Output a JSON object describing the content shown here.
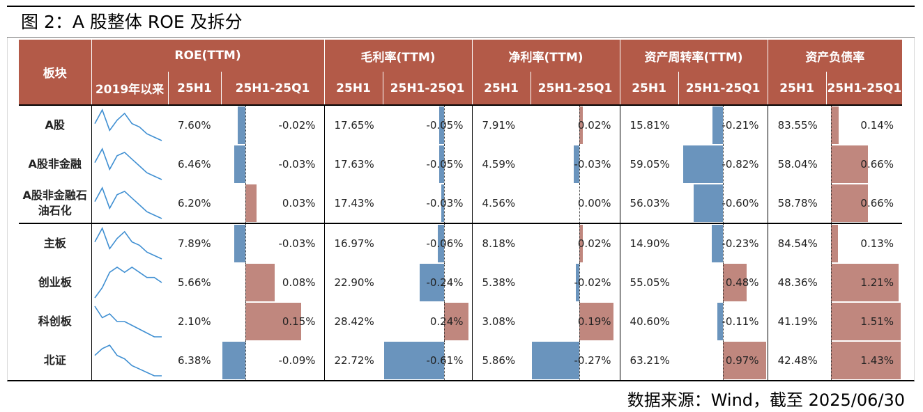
{
  "title": "图 2：A 股整体 ROE 及拆分",
  "source": "数据来源：Wind，截至 2025/06/30",
  "header": {
    "block": "板块",
    "groups": [
      "ROE(TTM)",
      "毛利率(TTM)",
      "净利率(TTM)",
      "资产周转率(TTM)",
      "资产负债率"
    ],
    "sub_trend": "2019年以来",
    "sub_level": "25H1",
    "sub_change": "25H1-25Q1"
  },
  "colors": {
    "header_bg": "#b35a48",
    "neg_bar": "#6a94bd",
    "pos_bar": "#c0877e",
    "sparkline": "#3f8fd2"
  },
  "chart_data": {
    "type": "table",
    "columns": [
      "板块",
      "ROE 25H1",
      "ROE 25H1-25Q1",
      "毛利率 25H1",
      "毛利率 25H1-25Q1",
      "净利率 25H1",
      "净利率 25H1-25Q1",
      "资产周转率 25H1",
      "资产周转率 25H1-25Q1",
      "资产负债率 25H1",
      "资产负债率 25H1-25Q1"
    ],
    "rows": [
      {
        "name": "A股",
        "values": [
          "7.60%",
          "-0.02%",
          "17.65%",
          "-0.05%",
          "7.91%",
          "0.02%",
          "15.81%",
          "-0.21%",
          "83.55%",
          "0.14%"
        ],
        "changes": [
          -0.02,
          -0.05,
          0.02,
          -0.21,
          0.14
        ],
        "trend": [
          6,
          10,
          4,
          7,
          9,
          6,
          5,
          3,
          2,
          1
        ]
      },
      {
        "name": "A股非金融",
        "values": [
          "6.46%",
          "-0.03%",
          "17.63%",
          "-0.05%",
          "4.59%",
          "-0.03%",
          "59.05%",
          "-0.82%",
          "58.04%",
          "0.66%"
        ],
        "changes": [
          -0.03,
          -0.05,
          -0.03,
          -0.82,
          0.66
        ],
        "trend": [
          6,
          10,
          4,
          8,
          9,
          7,
          5,
          3,
          2,
          1
        ]
      },
      {
        "name": "A股非金融石油石化",
        "values": [
          "6.20%",
          "0.03%",
          "17.43%",
          "-0.03%",
          "4.56%",
          "0.00%",
          "56.03%",
          "-0.60%",
          "58.78%",
          "0.66%"
        ],
        "changes": [
          0.03,
          -0.03,
          0.0,
          -0.6,
          0.66
        ],
        "trend": [
          6,
          10,
          4,
          8,
          9,
          7,
          5,
          3,
          2,
          1
        ]
      },
      {
        "name": "主板",
        "values": [
          "7.89%",
          "-0.03%",
          "16.97%",
          "-0.06%",
          "8.18%",
          "0.02%",
          "14.90%",
          "-0.23%",
          "84.54%",
          "0.13%"
        ],
        "changes": [
          -0.03,
          -0.06,
          0.02,
          -0.23,
          0.13
        ],
        "trend": [
          6,
          10,
          4,
          7,
          9,
          6,
          5,
          3,
          2,
          1
        ]
      },
      {
        "name": "创业板",
        "values": [
          "5.66%",
          "0.08%",
          "22.90%",
          "-0.24%",
          "5.38%",
          "-0.02%",
          "55.05%",
          "0.48%",
          "48.36%",
          "1.21%"
        ],
        "changes": [
          0.08,
          -0.24,
          -0.02,
          0.48,
          1.21
        ],
        "trend": [
          3,
          5,
          8,
          9,
          8,
          9,
          8,
          7,
          7,
          6
        ]
      },
      {
        "name": "科创板",
        "values": [
          "2.10%",
          "0.15%",
          "28.42%",
          "0.24%",
          "3.08%",
          "0.19%",
          "40.60%",
          "-0.11%",
          "41.19%",
          "1.51%"
        ],
        "changes": [
          0.15,
          0.24,
          0.19,
          -0.11,
          1.51
        ],
        "trend": [
          10,
          7,
          8,
          6,
          6,
          5,
          4,
          3,
          2,
          2
        ]
      },
      {
        "name": "北证",
        "values": [
          "6.38%",
          "-0.09%",
          "22.72%",
          "-0.61%",
          "5.86%",
          "-0.27%",
          "63.21%",
          "0.97%",
          "42.48%",
          "1.43%"
        ],
        "changes": [
          -0.09,
          -0.61,
          -0.27,
          0.97,
          1.43
        ],
        "trend": [
          7,
          9,
          10,
          7,
          6,
          4,
          3,
          2,
          1,
          1
        ]
      }
    ]
  }
}
